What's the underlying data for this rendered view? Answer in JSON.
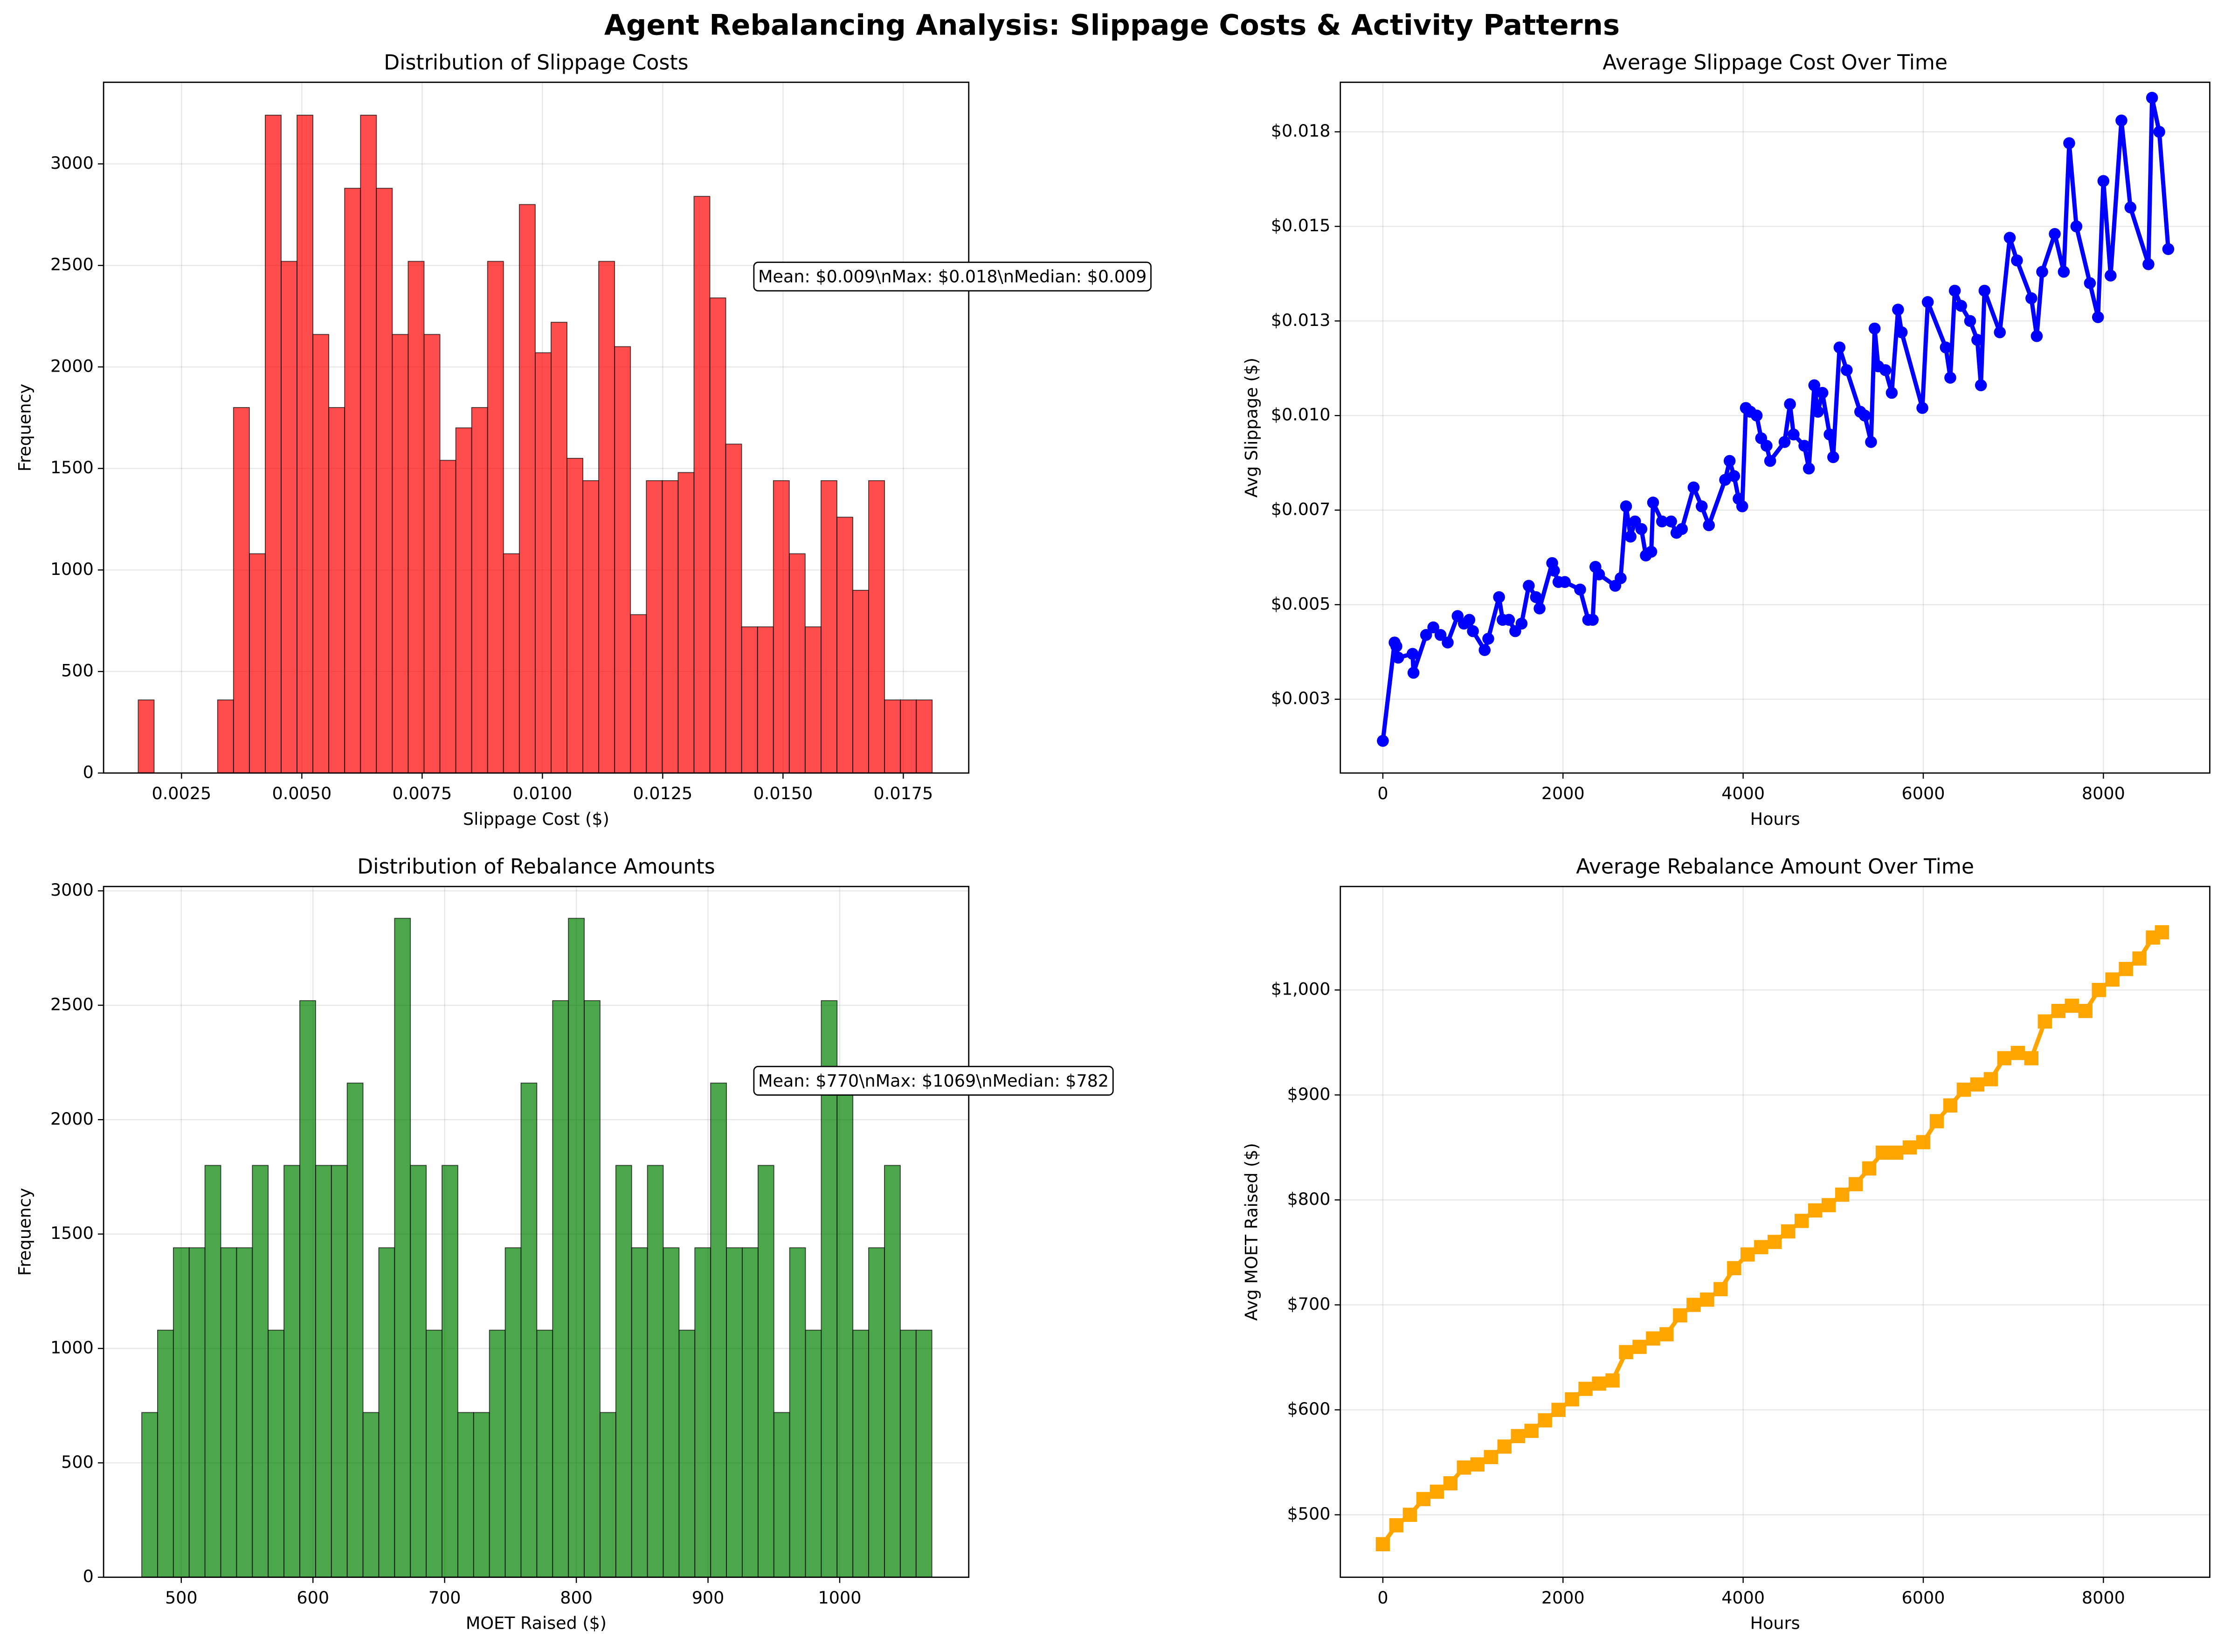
{
  "title": "Agent Rebalancing Analysis: Slippage Costs & Activity Patterns",
  "chart_data": [
    {
      "type": "histogram",
      "title": "Distribution of Slippage Costs",
      "xlabel": "Slippage Cost ($)",
      "ylabel": "Frequency",
      "color": "#ff0000",
      "edgecolor": "#000000",
      "grid": true,
      "annotation": "Mean: $0.009\\nMax: $0.018\\nMedian: $0.009",
      "bins": [
        0.0016,
        0.00193,
        0.00226,
        0.00259,
        0.00292,
        0.00325,
        0.00358,
        0.00391,
        0.00424,
        0.00457,
        0.0049,
        0.00523,
        0.00556,
        0.00589,
        0.00622,
        0.00655,
        0.00688,
        0.00721,
        0.00754,
        0.00787,
        0.0082,
        0.00853,
        0.00886,
        0.00919,
        0.00952,
        0.00985,
        0.01018,
        0.01051,
        0.01084,
        0.01117,
        0.0115,
        0.01183,
        0.01216,
        0.01249,
        0.01282,
        0.01315,
        0.01348,
        0.01381,
        0.01414,
        0.01447,
        0.0148,
        0.01513,
        0.01546,
        0.01579,
        0.01612,
        0.01645,
        0.01678,
        0.01711,
        0.01744,
        0.01777,
        0.0181
      ],
      "values": [
        360,
        0,
        0,
        0,
        0,
        360,
        1800,
        1080,
        3240,
        2520,
        3240,
        2160,
        1800,
        2880,
        3240,
        2880,
        2160,
        2520,
        2160,
        1540,
        1700,
        1800,
        2520,
        1080,
        2800,
        2070,
        2220,
        1550,
        1440,
        2520,
        2100,
        780,
        1440,
        1440,
        1480,
        2840,
        2340,
        1620,
        720,
        720,
        1440,
        1080,
        720,
        1440,
        1260,
        900,
        1440,
        360,
        360,
        360
      ],
      "xlim": [
        0.00088,
        0.01886
      ],
      "ylim": [
        0,
        3402
      ],
      "xticks": [
        0.0025,
        {
          "value": 0.005,
          "label": "0.0050"
        },
        0.0075,
        {
          "value": 0.01,
          "label": "0.0100"
        },
        0.0125,
        {
          "value": 0.015,
          "label": "0.0150"
        },
        0.0175
      ],
      "yticks": [
        0,
        500,
        1000,
        1500,
        2000,
        2500,
        3000
      ]
    },
    {
      "type": "line",
      "title": "Average Slippage Cost Over Time",
      "xlabel": "Hours",
      "ylabel": "Avg Slippage ($)",
      "color": "#0000ff",
      "marker": "circle",
      "grid": true,
      "x": [
        0,
        130,
        150,
        170,
        330,
        340,
        480,
        560,
        640,
        720,
        830,
        900,
        960,
        1000,
        1130,
        1170,
        1290,
        1330,
        1400,
        1470,
        1540,
        1620,
        1700,
        1740,
        1880,
        1900,
        1950,
        2020,
        2190,
        2280,
        2330,
        2360,
        2400,
        2580,
        2640,
        2700,
        2750,
        2800,
        2870,
        2920,
        2980,
        3000,
        3100,
        3200,
        3260,
        3320,
        3450,
        3540,
        3620,
        3800,
        3850,
        3900,
        3950,
        3990,
        4030,
        4080,
        4150,
        4200,
        4260,
        4300,
        4460,
        4520,
        4560,
        4680,
        4730,
        4790,
        4830,
        4880,
        4960,
        5000,
        5070,
        5150,
        5300,
        5350,
        5420,
        5460,
        5500,
        5580,
        5650,
        5720,
        5760,
        5990,
        6050,
        6250,
        6300,
        6350,
        6420,
        6520,
        6600,
        6640,
        6680,
        6850,
        6960,
        7040,
        7200,
        7260,
        7320,
        7460,
        7560,
        7620,
        7700,
        7850,
        7940,
        8000,
        8080,
        8200,
        8300,
        8500,
        8540,
        8620,
        8720
      ],
      "values": [
        0.0014,
        0.004,
        0.0039,
        0.0036,
        0.0037,
        0.0032,
        0.0042,
        0.0044,
        0.0042,
        0.004,
        0.0047,
        0.0045,
        0.0046,
        0.0043,
        0.0038,
        0.0041,
        0.0052,
        0.0046,
        0.0046,
        0.0043,
        0.0045,
        0.0055,
        0.0052,
        0.0049,
        0.0061,
        0.0059,
        0.0056,
        0.0056,
        0.0054,
        0.0046,
        0.0046,
        0.006,
        0.0058,
        0.0055,
        0.0057,
        0.0076,
        0.0068,
        0.0072,
        0.007,
        0.0063,
        0.0064,
        0.0077,
        0.0072,
        0.0072,
        0.0069,
        0.007,
        0.0081,
        0.0076,
        0.0071,
        0.0083,
        0.0088,
        0.0084,
        0.0078,
        0.0076,
        0.0102,
        0.0101,
        0.01,
        0.0094,
        0.0092,
        0.0088,
        0.0093,
        0.0103,
        0.0095,
        0.0092,
        0.0086,
        0.0108,
        0.0101,
        0.0106,
        0.0095,
        0.0089,
        0.0118,
        0.0112,
        0.0101,
        0.01,
        0.0093,
        0.0123,
        0.0113,
        0.0112,
        0.0106,
        0.0128,
        0.0122,
        0.0102,
        0.013,
        0.0118,
        0.011,
        0.0133,
        0.0129,
        0.0125,
        0.012,
        0.0108,
        0.0133,
        0.0122,
        0.0147,
        0.0141,
        0.0131,
        0.0121,
        0.0138,
        0.0148,
        0.0138,
        0.0172,
        0.015,
        0.0135,
        0.0126,
        0.0162,
        0.0137,
        0.0178,
        0.0155,
        0.014,
        0.0184,
        0.0175,
        0.0144
      ],
      "xlim": [
        -472,
        9181
      ],
      "ylim": [
        0.00055,
        0.01881
      ],
      "xticks": [
        0,
        2000,
        4000,
        6000,
        8000
      ],
      "yticks": [
        {
          "value": 0.0025,
          "label": "$0.003"
        },
        {
          "value": 0.005,
          "label": "$0.005"
        },
        {
          "value": 0.0075,
          "label": "$0.007"
        },
        {
          "value": 0.01,
          "label": "$0.010"
        },
        {
          "value": 0.0125,
          "label": "$0.013"
        },
        {
          "value": 0.015,
          "label": "$0.015"
        },
        {
          "value": 0.0175,
          "label": "$0.018"
        }
      ]
    },
    {
      "type": "histogram",
      "title": "Distribution of Rebalance Amounts",
      "xlabel": "MOET Raised ($)",
      "ylabel": "Frequency",
      "color": "#008000",
      "edgecolor": "#000000",
      "grid": true,
      "annotation": "Mean: $770\\nMax: $1069\\nMedian: $782",
      "bins": [
        470,
        482,
        494,
        506,
        518,
        530,
        542,
        554,
        566,
        578,
        590,
        602,
        614,
        626,
        638,
        650,
        662,
        674,
        686,
        698,
        710,
        722,
        734,
        746,
        758,
        770,
        782,
        794,
        806,
        818,
        830,
        842,
        854,
        866,
        878,
        890,
        902,
        914,
        926,
        938,
        950,
        962,
        974,
        986,
        998,
        1010,
        1022,
        1034,
        1046,
        1058,
        1070
      ],
      "values": [
        720,
        1080,
        1440,
        1440,
        1800,
        1440,
        1440,
        1800,
        1080,
        1800,
        2520,
        1800,
        1800,
        2160,
        720,
        1440,
        2880,
        1800,
        1080,
        1800,
        720,
        720,
        1080,
        1440,
        2160,
        1080,
        2520,
        2880,
        2520,
        720,
        1800,
        1440,
        1800,
        1440,
        1080,
        1440,
        2160,
        1440,
        1440,
        1800,
        720,
        1440,
        1080,
        2520,
        2160,
        1080,
        1440,
        1800,
        1080,
        1080
      ],
      "xlim": [
        441,
        1098
      ],
      "ylim": [
        0,
        3019
      ],
      "xticks": [
        500,
        600,
        700,
        800,
        900,
        1000
      ],
      "yticks": [
        0,
        500,
        1000,
        1500,
        2000,
        2500,
        3000
      ]
    },
    {
      "type": "line",
      "title": "Average Rebalance Amount Over Time",
      "xlabel": "Hours",
      "ylabel": "Avg MOET Raised ($)",
      "color": "#ffa500",
      "marker": "square",
      "grid": true,
      "x": [
        0,
        150,
        300,
        450,
        600,
        750,
        900,
        1050,
        1200,
        1350,
        1500,
        1650,
        1800,
        1950,
        2100,
        2250,
        2400,
        2550,
        2700,
        2850,
        3000,
        3150,
        3300,
        3450,
        3600,
        3750,
        3900,
        4050,
        4200,
        4350,
        4500,
        4650,
        4800,
        4950,
        5100,
        5250,
        5400,
        5550,
        5700,
        5850,
        6000,
        6150,
        6300,
        6450,
        6600,
        6750,
        6900,
        7050,
        7200,
        7350,
        7500,
        7650,
        7800,
        7950,
        8100,
        8250,
        8400,
        8550,
        8650
      ],
      "values": [
        472,
        490,
        500,
        515,
        522,
        530,
        545,
        548,
        555,
        565,
        575,
        580,
        590,
        600,
        610,
        620,
        625,
        628,
        655,
        660,
        668,
        672,
        690,
        700,
        705,
        715,
        735,
        748,
        755,
        760,
        770,
        780,
        790,
        795,
        805,
        815,
        830,
        845,
        845,
        850,
        855,
        875,
        890,
        905,
        910,
        915,
        935,
        940,
        935,
        970,
        980,
        985,
        980,
        1000,
        1010,
        1020,
        1030,
        1050,
        1055
      ],
      "xlim": [
        -472,
        9181
      ],
      "ylim": [
        440.5,
        1098.6
      ],
      "xticks": [
        0,
        2000,
        4000,
        6000,
        8000
      ],
      "yticks": [
        {
          "value": 500,
          "label": "$500"
        },
        {
          "value": 600,
          "label": "$600"
        },
        {
          "value": 700,
          "label": "$700"
        },
        {
          "value": 800,
          "label": "$800"
        },
        {
          "value": 900,
          "label": "$900"
        },
        {
          "value": 1000,
          "label": "$1,000"
        }
      ]
    }
  ]
}
